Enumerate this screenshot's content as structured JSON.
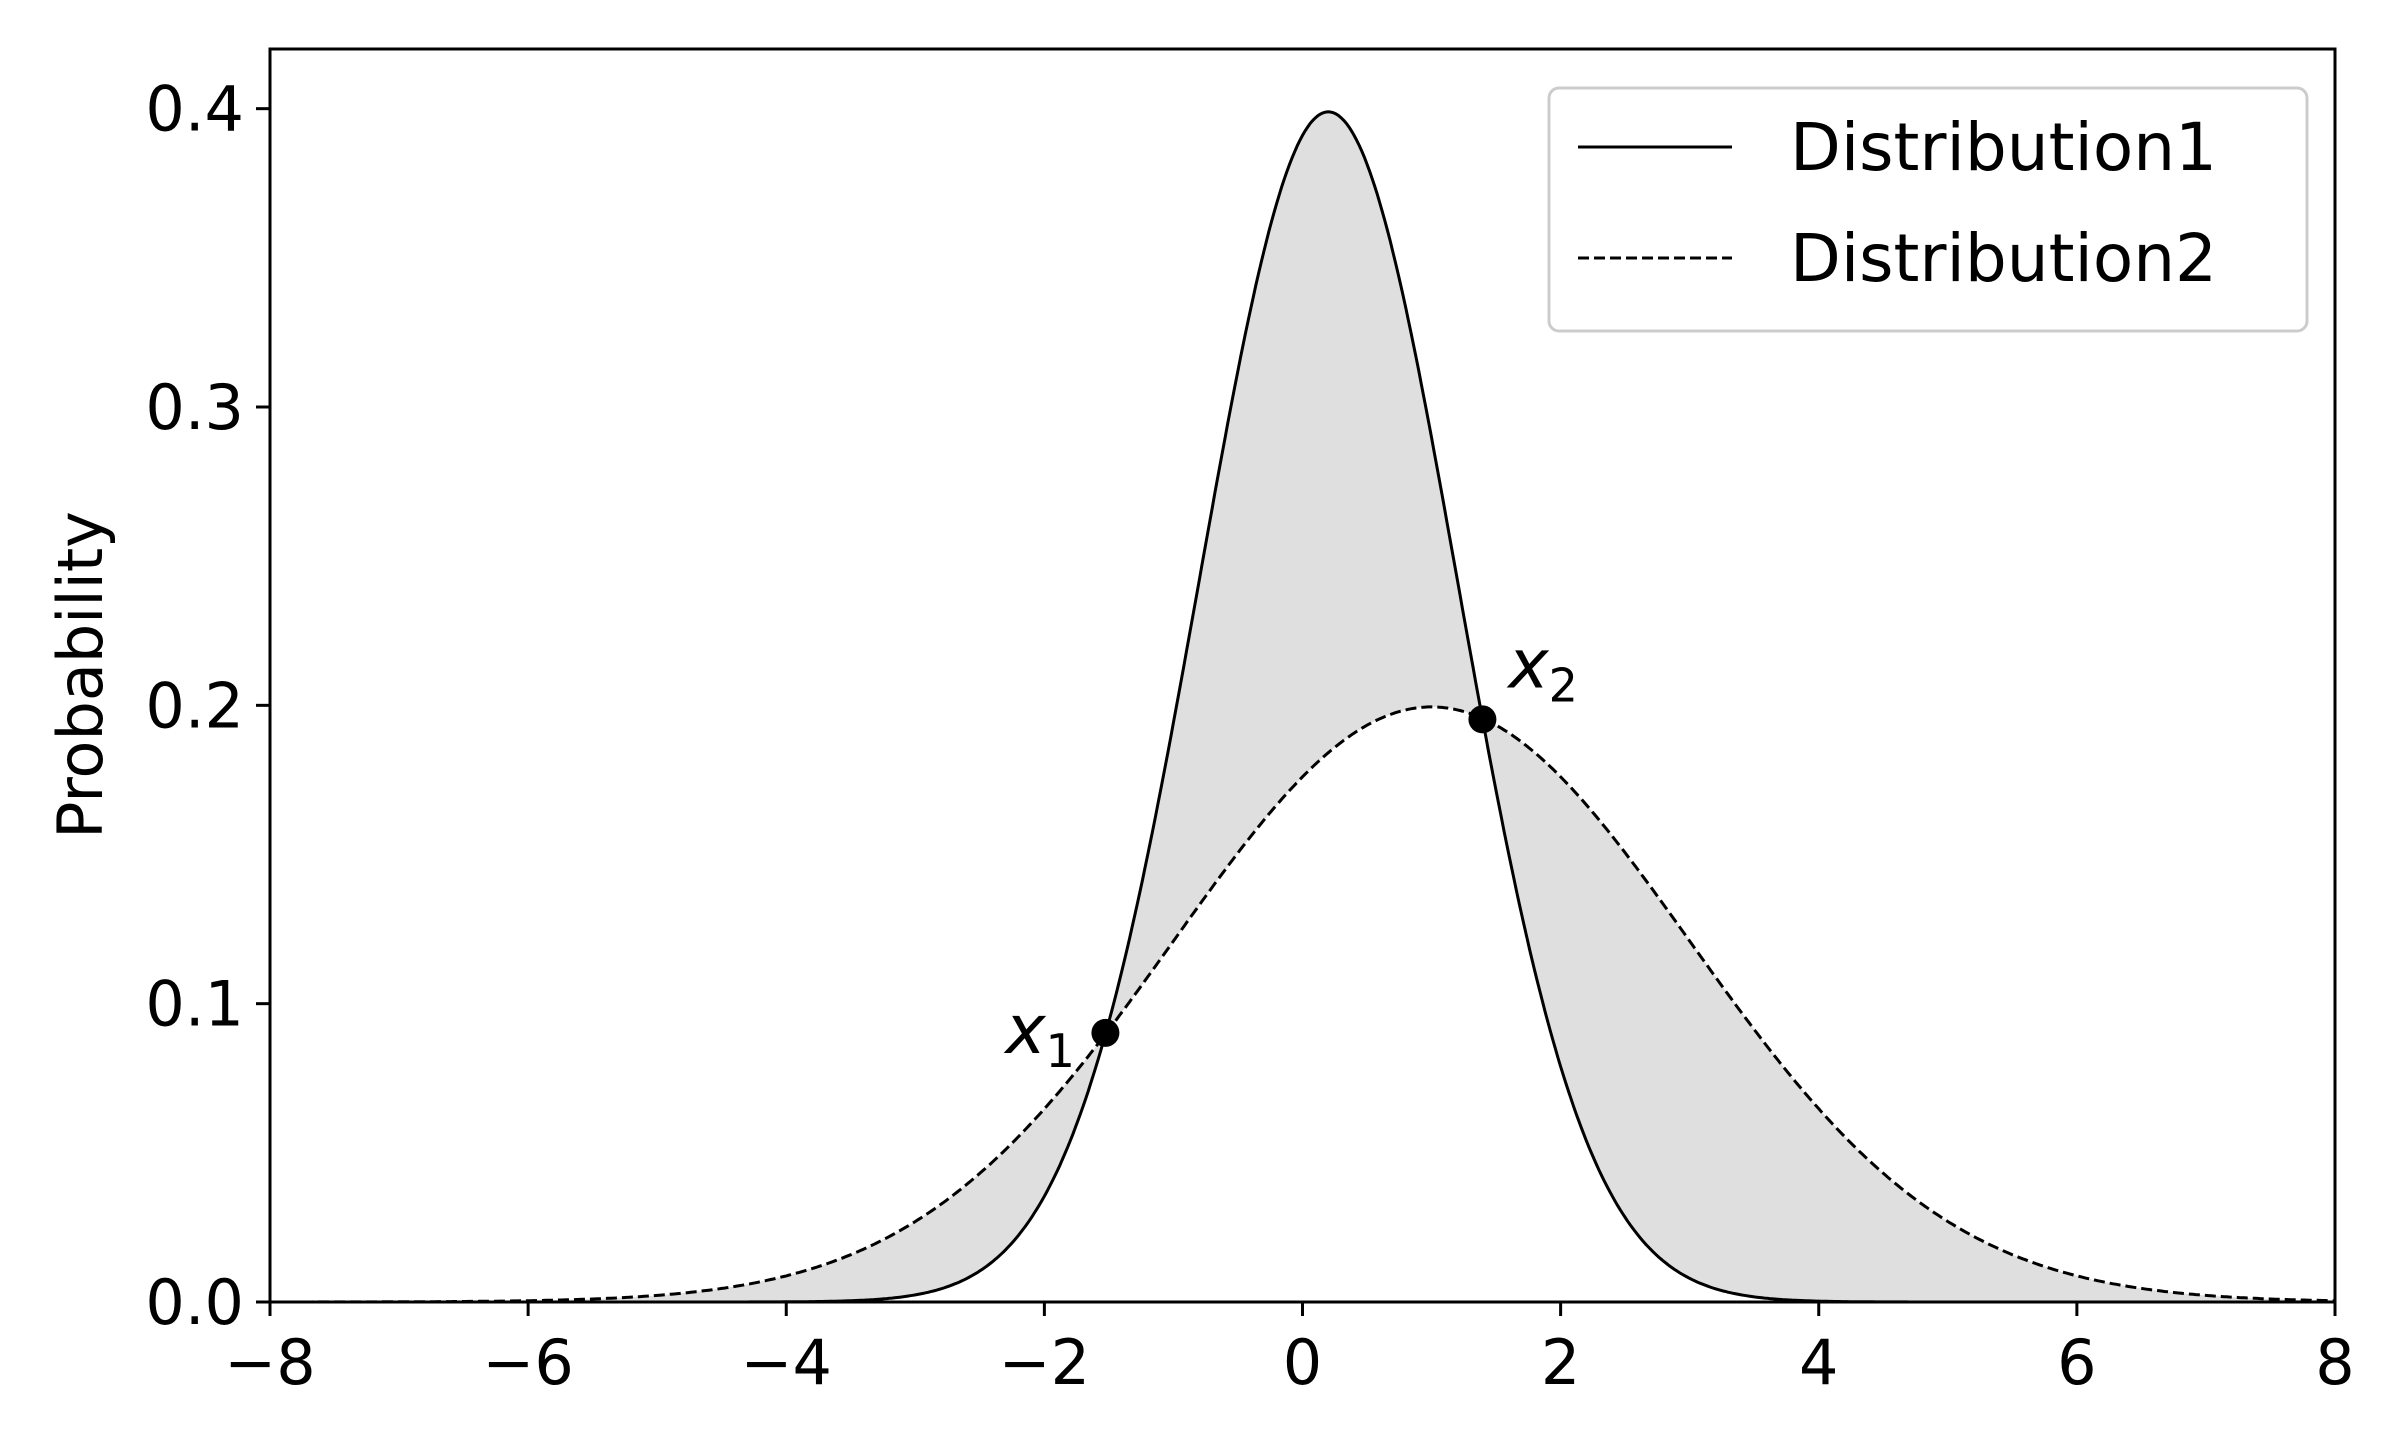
{
  "chart_data": {
    "type": "line",
    "title": "",
    "xlabel": "",
    "ylabel": "Probability",
    "xlim": [
      -8,
      8
    ],
    "ylim": [
      0,
      0.42
    ],
    "xticks": [
      -8,
      -6,
      -4,
      -2,
      0,
      2,
      4,
      6,
      8
    ],
    "xtick_labels": [
      "−8",
      "−6",
      "−4",
      "−2",
      "0",
      "2",
      "4",
      "6",
      "8"
    ],
    "yticks": [
      0.0,
      0.1,
      0.2,
      0.3,
      0.4
    ],
    "ytick_labels": [
      "0.0",
      "0.1",
      "0.2",
      "0.3",
      "0.4"
    ],
    "grid": false,
    "legend_position": "top-right",
    "series": [
      {
        "name": "Distribution1",
        "style": "solid",
        "distribution": "normal",
        "mean": 0.2,
        "std": 1.0,
        "peak": 0.399
      },
      {
        "name": "Distribution2",
        "style": "dashed",
        "distribution": "normal",
        "mean": 1.0,
        "std": 2.0,
        "peak": 0.1995
      }
    ],
    "fill_between": {
      "color": "#dfdfdf",
      "description_series": [
        "Distribution1",
        "Distribution2"
      ]
    },
    "annotations": [
      {
        "label": "x",
        "subscript": "1",
        "x": -1.527,
        "y": 0.0902
      },
      {
        "label": "x",
        "subscript": "2",
        "x": 1.394,
        "y": 0.1953
      }
    ],
    "colors": {
      "line": "#000000",
      "fill": "#dfdfdf"
    }
  }
}
